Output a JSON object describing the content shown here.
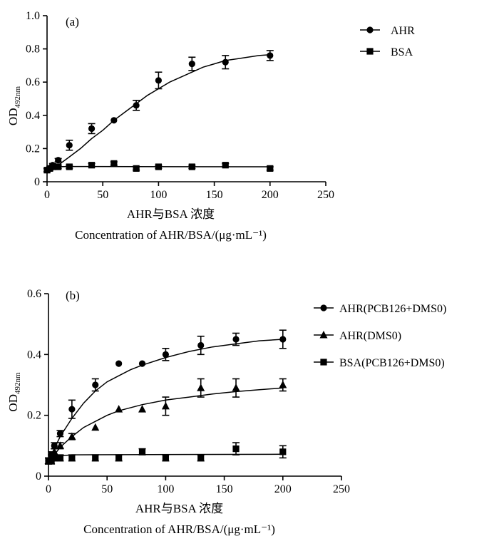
{
  "chart_data": [
    {
      "type": "scatter",
      "panel_label": "(a)",
      "ylabel": "OD",
      "ylabel_subscript": "492nm",
      "xlabel_cn": "AHR与BSA 浓度",
      "xlabel_en": "Concentration of AHR/BSA/(μg·mL⁻¹)",
      "xlim": [
        0,
        250
      ],
      "ylim": [
        0,
        1.0
      ],
      "xticks": [
        "0",
        "50",
        "100",
        "150",
        "200",
        "250"
      ],
      "yticks": [
        "0",
        "0.2",
        "0.4",
        "0.6",
        "0.8",
        "1.0"
      ],
      "legend_position": "top-right",
      "series": [
        {
          "name": "AHR",
          "marker": "circle",
          "fit": "sigmoid",
          "x": [
            0,
            2.5,
            5,
            10,
            20,
            40,
            60,
            80,
            100,
            130,
            160,
            200
          ],
          "y": [
            0.07,
            0.08,
            0.1,
            0.13,
            0.22,
            0.32,
            0.37,
            0.46,
            0.61,
            0.71,
            0.72,
            0.76
          ],
          "err": [
            0.01,
            0.01,
            0.01,
            0.01,
            0.03,
            0.03,
            0.0,
            0.03,
            0.05,
            0.04,
            0.04,
            0.03
          ],
          "fit_points": [
            [
              0,
              0.06
            ],
            [
              10,
              0.1
            ],
            [
              20,
              0.15
            ],
            [
              30,
              0.2
            ],
            [
              40,
              0.26
            ],
            [
              50,
              0.31
            ],
            [
              60,
              0.37
            ],
            [
              70,
              0.42
            ],
            [
              80,
              0.47
            ],
            [
              90,
              0.52
            ],
            [
              100,
              0.56
            ],
            [
              110,
              0.6
            ],
            [
              120,
              0.63
            ],
            [
              130,
              0.66
            ],
            [
              140,
              0.69
            ],
            [
              150,
              0.71
            ],
            [
              160,
              0.73
            ],
            [
              170,
              0.74
            ],
            [
              180,
              0.75
            ],
            [
              190,
              0.76
            ],
            [
              200,
              0.765
            ]
          ]
        },
        {
          "name": "BSA",
          "marker": "square",
          "fit": "flat",
          "x": [
            0,
            2.5,
            5,
            10,
            20,
            40,
            60,
            80,
            100,
            130,
            160,
            200
          ],
          "y": [
            0.07,
            0.08,
            0.09,
            0.09,
            0.09,
            0.1,
            0.11,
            0.08,
            0.09,
            0.09,
            0.1,
            0.08
          ],
          "err": [
            0.01,
            0.01,
            0.01,
            0.01,
            0.01,
            0.01,
            0.01,
            0.01,
            0.01,
            0.01,
            0.01,
            0.01
          ],
          "fit_points": [
            [
              0,
              0.08
            ],
            [
              5,
              0.09
            ],
            [
              20,
              0.092
            ],
            [
              200,
              0.09
            ]
          ]
        }
      ]
    },
    {
      "type": "scatter",
      "panel_label": "(b)",
      "ylabel": "OD",
      "ylabel_subscript": "492nm",
      "xlabel_cn": "AHR与BSA 浓度",
      "xlabel_en": "Concentration of AHR/BSA/(μg·mL⁻¹)",
      "xlim": [
        0,
        250
      ],
      "ylim": [
        0,
        0.6
      ],
      "xticks": [
        "0",
        "50",
        "100",
        "150",
        "200",
        "250"
      ],
      "yticks": [
        "0",
        "0.2",
        "0.4",
        "0.6"
      ],
      "legend_position": "top-right",
      "series": [
        {
          "name": "AHR(PCB126+DMS0)",
          "marker": "circle",
          "fit": "hyperbolic",
          "x": [
            0,
            2.5,
            5,
            10,
            20,
            40,
            60,
            80,
            100,
            130,
            160,
            200
          ],
          "y": [
            0.05,
            0.07,
            0.1,
            0.14,
            0.22,
            0.3,
            0.37,
            0.37,
            0.4,
            0.43,
            0.45,
            0.45
          ],
          "err": [
            0.01,
            0.01,
            0.01,
            0.01,
            0.03,
            0.02,
            0.0,
            0.0,
            0.02,
            0.03,
            0.02,
            0.03
          ],
          "fit_points": [
            [
              0,
              0.04
            ],
            [
              5,
              0.09
            ],
            [
              10,
              0.13
            ],
            [
              20,
              0.19
            ],
            [
              30,
              0.24
            ],
            [
              40,
              0.28
            ],
            [
              50,
              0.31
            ],
            [
              60,
              0.33
            ],
            [
              70,
              0.35
            ],
            [
              80,
              0.365
            ],
            [
              100,
              0.39
            ],
            [
              120,
              0.41
            ],
            [
              140,
              0.425
            ],
            [
              160,
              0.435
            ],
            [
              180,
              0.445
            ],
            [
              200,
              0.45
            ]
          ]
        },
        {
          "name": "AHR(DMS0)",
          "marker": "triangle",
          "fit": "hyperbolic",
          "x": [
            0,
            2.5,
            5,
            10,
            20,
            40,
            60,
            80,
            100,
            130,
            160,
            200
          ],
          "y": [
            0.05,
            0.06,
            0.08,
            0.1,
            0.13,
            0.16,
            0.22,
            0.22,
            0.23,
            0.29,
            0.29,
            0.3
          ],
          "err": [
            0.01,
            0.01,
            0.01,
            0.01,
            0.01,
            0.0,
            0.0,
            0.0,
            0.03,
            0.03,
            0.03,
            0.02
          ],
          "fit_points": [
            [
              0,
              0.04
            ],
            [
              5,
              0.07
            ],
            [
              10,
              0.095
            ],
            [
              20,
              0.13
            ],
            [
              30,
              0.16
            ],
            [
              40,
              0.18
            ],
            [
              50,
              0.2
            ],
            [
              60,
              0.215
            ],
            [
              80,
              0.235
            ],
            [
              100,
              0.25
            ],
            [
              120,
              0.26
            ],
            [
              140,
              0.27
            ],
            [
              160,
              0.278
            ],
            [
              180,
              0.284
            ],
            [
              200,
              0.29
            ]
          ]
        },
        {
          "name": "BSA(PCB126+DMS0)",
          "marker": "square",
          "fit": "flat",
          "x": [
            0,
            2.5,
            5,
            10,
            20,
            40,
            60,
            80,
            100,
            130,
            160,
            200
          ],
          "y": [
            0.05,
            0.05,
            0.06,
            0.06,
            0.06,
            0.06,
            0.06,
            0.08,
            0.06,
            0.06,
            0.09,
            0.08
          ],
          "err": [
            0.01,
            0.01,
            0.01,
            0.01,
            0.01,
            0.01,
            0.01,
            0.01,
            0.01,
            0.01,
            0.02,
            0.02
          ],
          "fit_points": [
            [
              0,
              0.05
            ],
            [
              5,
              0.065
            ],
            [
              20,
              0.07
            ],
            [
              200,
              0.072
            ]
          ]
        }
      ]
    }
  ]
}
